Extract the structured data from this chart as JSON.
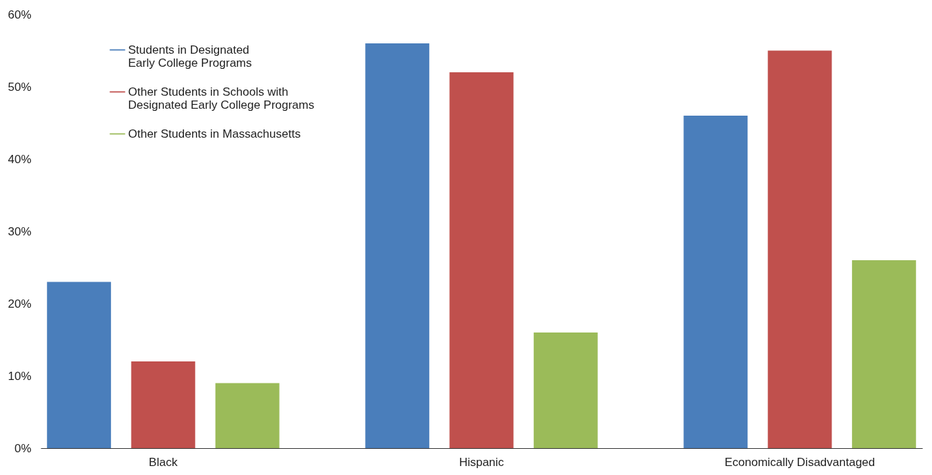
{
  "chart_data": {
    "type": "bar",
    "categories": [
      "Black",
      "Hispanic",
      "Economically Disadvantaged"
    ],
    "series": [
      {
        "name": "Students in Designated Early College Programs",
        "color": "#4a7ebb",
        "values": [
          23,
          56,
          46
        ]
      },
      {
        "name": "Other Students in Schools with Designated Early College Programs",
        "color": "#c0504d",
        "values": [
          12,
          52,
          55
        ]
      },
      {
        "name": "Other Students in Massachusetts",
        "color": "#9bbb59",
        "values": [
          9,
          16,
          26
        ]
      }
    ],
    "ylim": [
      0,
      60
    ],
    "yticks": [
      {
        "value": 0,
        "label": "0%"
      },
      {
        "value": 10,
        "label": "10%"
      },
      {
        "value": 20,
        "label": "20%"
      },
      {
        "value": 30,
        "label": "30%"
      },
      {
        "value": 40,
        "label": "40%"
      },
      {
        "value": 50,
        "label": "50%"
      },
      {
        "value": 60,
        "label": "60%"
      }
    ],
    "grid": false,
    "legend": "top left"
  }
}
